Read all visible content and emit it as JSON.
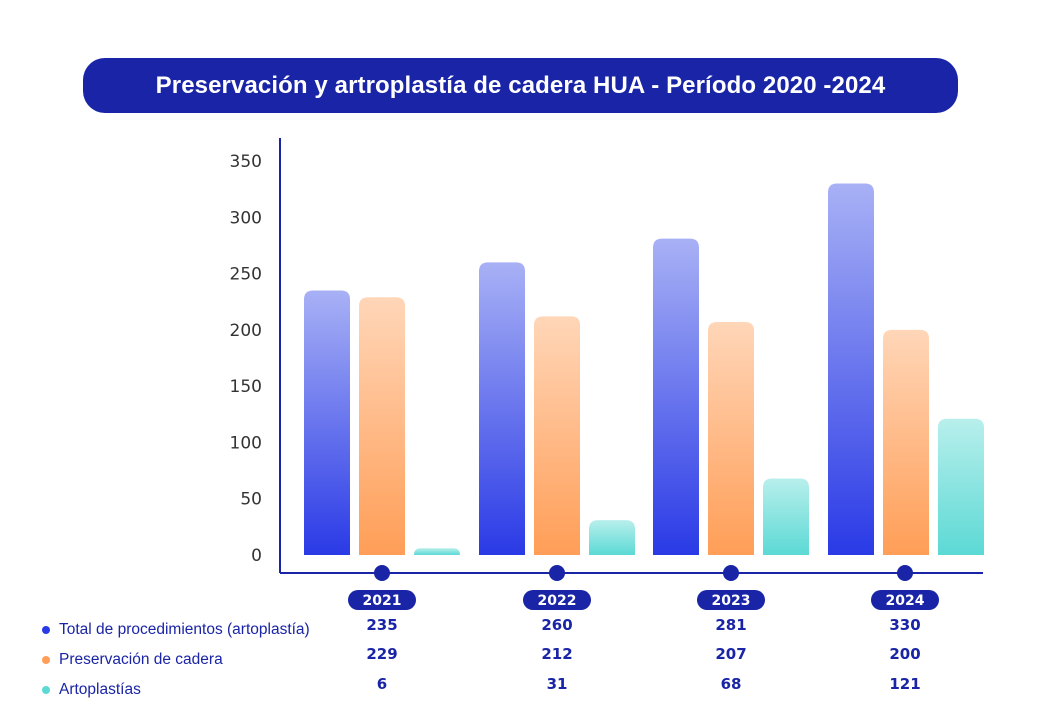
{
  "title": "Preservación y artroplastía de cadera HUA - Período 2020 -2024",
  "chart_data": {
    "type": "bar",
    "title": "Preservación y artroplastía de cadera HUA - Período 2020 -2024",
    "xlabel": "",
    "ylabel": "",
    "categories": [
      "2021",
      "2022",
      "2023",
      "2024"
    ],
    "ylim": [
      0,
      350
    ],
    "yticks": [
      "0",
      "50",
      "100",
      "150",
      "200",
      "250",
      "300",
      "350"
    ],
    "ytick_values": [
      0,
      50,
      100,
      150,
      200,
      250,
      300,
      350
    ],
    "grid": false,
    "legend_position": "bottom-left",
    "series": [
      {
        "name": "Total de procedimientos (artoplastía)",
        "color": "#2a3ae6",
        "color_light": "#a8b1f5",
        "values": [
          235,
          260,
          281,
          330
        ]
      },
      {
        "name": "Preservación de cadera",
        "color": "#ff9e57",
        "color_light": "#ffd6b8",
        "values": [
          229,
          212,
          207,
          200
        ]
      },
      {
        "name": "Artoplastías",
        "color": "#5cd9d5",
        "color_light": "#b8efec",
        "values": [
          6,
          31,
          68,
          121
        ]
      }
    ]
  },
  "colors": {
    "navy": "#1a24a6",
    "axis": "#1a24a6",
    "tick_text": "#333333"
  },
  "legend": [
    {
      "label": "Total de procedimientos (artoplastía)",
      "color": "#2a3ae6"
    },
    {
      "label": "Preservación de cadera",
      "color": "#ff9e57"
    },
    {
      "label": "Artoplastías",
      "color": "#5cd9d5"
    }
  ]
}
